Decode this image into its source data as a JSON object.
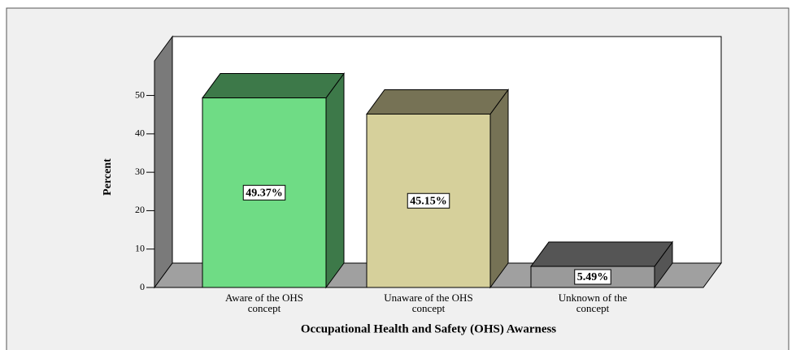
{
  "chart_data": {
    "type": "bar3d",
    "categories": [
      "Aware of the OHS concept",
      "Unaware of the OHS concept",
      "Unknown of the concept"
    ],
    "values": [
      49.37,
      45.15,
      5.49
    ],
    "value_labels": [
      "49.37%",
      "45.15%",
      "5.49%"
    ],
    "colors": [
      "#6fdc85",
      "#d6d09b",
      "#9a9a9a"
    ],
    "ylim": [
      0,
      59
    ],
    "yticks": [
      0,
      10,
      20,
      30,
      40,
      50
    ],
    "ylabel": "Percent",
    "xlabel": "Occupational Health and Safety (OHS) Awarness"
  }
}
